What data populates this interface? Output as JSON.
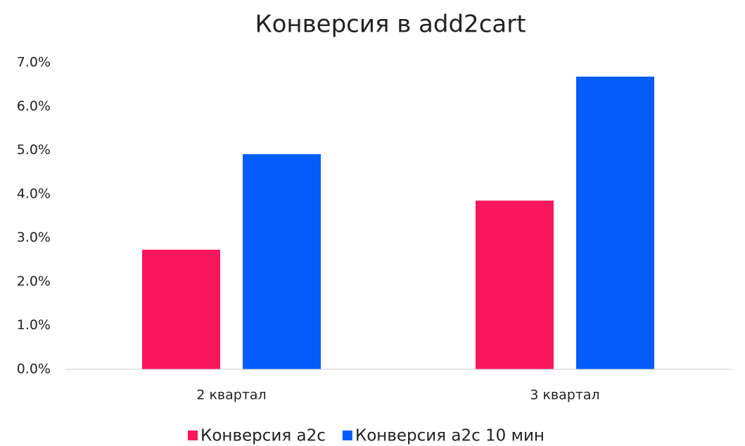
{
  "chart_data": {
    "type": "bar",
    "title": "Конверсия в add2cart",
    "categories": [
      "2 квартал",
      "3 квартал"
    ],
    "series": [
      {
        "name": "Конверсия a2c",
        "color": "#f8175c",
        "values": [
          2.73,
          3.85
        ]
      },
      {
        "name": "Конверсия a2c 10 мин",
        "color": "#045cfb",
        "values": [
          4.91,
          6.68
        ]
      }
    ],
    "ylim": [
      0,
      7
    ],
    "yticks": [
      {
        "value": 0,
        "label": "0.0%"
      },
      {
        "value": 1,
        "label": "1.0%"
      },
      {
        "value": 2,
        "label": "2.0%"
      },
      {
        "value": 3,
        "label": "3.0%"
      },
      {
        "value": 4,
        "label": "4.0%"
      },
      {
        "value": 5,
        "label": "5.0%"
      },
      {
        "value": 6,
        "label": "6.0%"
      },
      {
        "value": 7,
        "label": "7.0%"
      }
    ],
    "grid": false,
    "legend": "bottom"
  }
}
